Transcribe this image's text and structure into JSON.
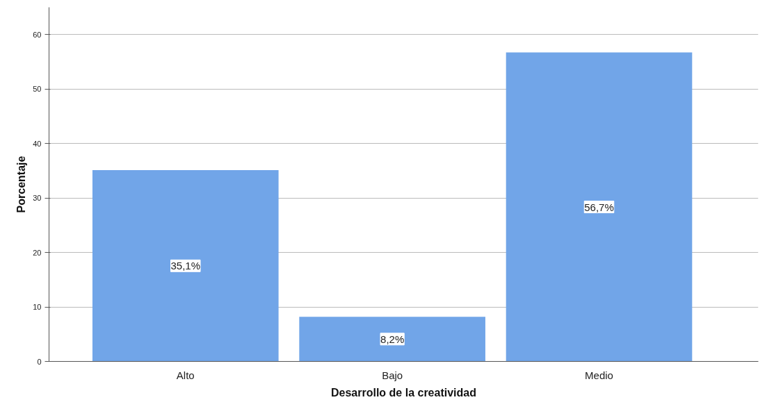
{
  "chart_data": {
    "type": "bar",
    "xlabel": "Desarrollo de la creatividad",
    "ylabel": "Porcentaje",
    "categories": [
      "Alto",
      "Bajo",
      "Medio"
    ],
    "values": [
      35.1,
      8.2,
      56.7
    ],
    "value_labels": [
      "35,1%",
      "8,2%",
      "56,7%"
    ],
    "color": "#71a5e8",
    "ylim": [
      0,
      65
    ],
    "yticks": [
      0,
      10,
      20,
      30,
      40,
      50,
      60
    ],
    "grid": "y"
  }
}
